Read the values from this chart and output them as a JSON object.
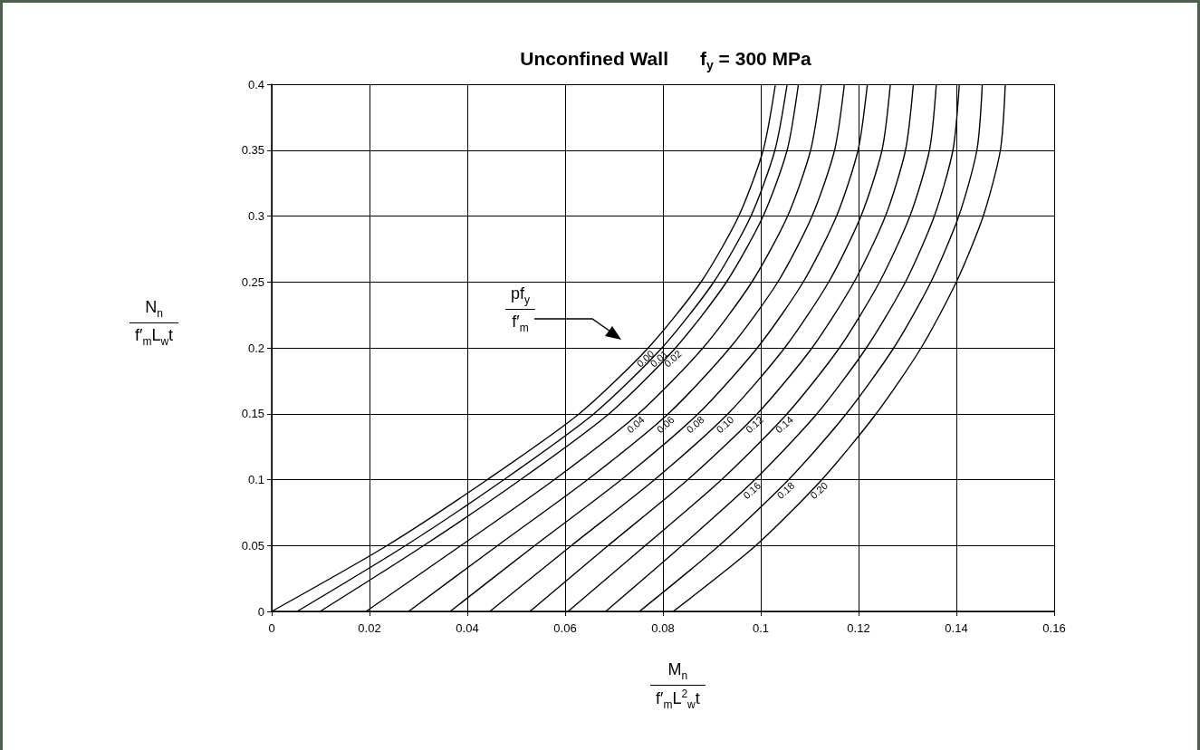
{
  "chart_data": {
    "type": "line",
    "title": "Unconfined Wall      f$_{y}$ = 300 MPa",
    "xlabel": "M$_{n}$\nf′$_{m}$L$^{2}$$_{w}$t",
    "ylabel": "N$_{n}$\nf′$_{m}$L$_{w}$t",
    "annotations": [
      "pf$_{y}$\nf′$_{m}$"
    ],
    "xlim": [
      0,
      0.16
    ],
    "xticks": [
      0,
      0.02,
      0.04,
      0.06,
      0.08,
      0.1,
      0.12,
      0.14,
      0.16
    ],
    "ylim": [
      0,
      0.4
    ],
    "yticks": [
      0,
      0.05,
      0.1,
      0.15,
      0.2,
      0.25,
      0.3,
      0.35,
      0.4
    ],
    "grid": true,
    "series": [
      {
        "name": "0.00",
        "color": "#000000",
        "x": [
          0,
          0.0236,
          0.0441,
          0.0629,
          0.077,
          0.0878,
          0.0955,
          0.1005,
          0.103
        ],
        "values": [
          0,
          0.05,
          0.1,
          0.15,
          0.2,
          0.25,
          0.3,
          0.35,
          0.4
        ]
      },
      {
        "name": "0.01",
        "color": "#000000",
        "x": [
          0.0052,
          0.0274,
          0.0475,
          0.0659,
          0.0798,
          0.0904,
          0.098,
          0.1029,
          0.1054
        ],
        "values": [
          0,
          0.05,
          0.1,
          0.15,
          0.2,
          0.25,
          0.3,
          0.35,
          0.4
        ]
      },
      {
        "name": "0.02",
        "color": "#000000",
        "x": [
          0.0099,
          0.0311,
          0.0509,
          0.069,
          0.0826,
          0.093,
          0.1005,
          0.1054,
          0.1077
        ],
        "values": [
          0,
          0.05,
          0.1,
          0.15,
          0.2,
          0.25,
          0.3,
          0.35,
          0.4
        ]
      },
      {
        "name": "0.04",
        "color": "#000000",
        "x": [
          0.0193,
          0.0387,
          0.0578,
          0.075,
          0.0882,
          0.0982,
          0.1055,
          0.1102,
          0.1124
        ],
        "values": [
          0,
          0.05,
          0.1,
          0.15,
          0.2,
          0.25,
          0.3,
          0.35,
          0.4
        ]
      },
      {
        "name": "0.06",
        "color": "#000000",
        "x": [
          0.028,
          0.0462,
          0.0646,
          0.0811,
          0.0937,
          0.1035,
          0.1105,
          0.1151,
          0.1171
        ],
        "values": [
          0,
          0.05,
          0.1,
          0.15,
          0.2,
          0.25,
          0.3,
          0.35,
          0.4
        ]
      },
      {
        "name": "0.08",
        "color": "#000000",
        "x": [
          0.0365,
          0.0538,
          0.0715,
          0.0872,
          0.0993,
          0.1087,
          0.1155,
          0.1199,
          0.1218
        ],
        "values": [
          0,
          0.05,
          0.1,
          0.15,
          0.2,
          0.25,
          0.3,
          0.35,
          0.4
        ]
      },
      {
        "name": "0.10",
        "color": "#000000",
        "x": [
          0.0446,
          0.0613,
          0.0783,
          0.0933,
          0.1049,
          0.1139,
          0.1205,
          0.1248,
          0.1265
        ],
        "values": [
          0,
          0.05,
          0.1,
          0.15,
          0.2,
          0.25,
          0.3,
          0.35,
          0.4
        ]
      },
      {
        "name": "0.12",
        "color": "#000000",
        "x": [
          0.0528,
          0.0688,
          0.0851,
          0.0993,
          0.1105,
          0.1191,
          0.1255,
          0.1296,
          0.1312
        ],
        "values": [
          0,
          0.05,
          0.1,
          0.15,
          0.2,
          0.25,
          0.3,
          0.35,
          0.4
        ]
      },
      {
        "name": "0.14",
        "color": "#000000",
        "x": [
          0.0606,
          0.0764,
          0.092,
          0.1054,
          0.1161,
          0.1243,
          0.1305,
          0.1345,
          0.1359
        ],
        "values": [
          0,
          0.05,
          0.1,
          0.15,
          0.2,
          0.25,
          0.3,
          0.35,
          0.4
        ]
      },
      {
        "name": "0.16",
        "color": "#000000",
        "x": [
          0.0683,
          0.0839,
          0.0988,
          0.1115,
          0.1216,
          0.1296,
          0.1355,
          0.1393,
          0.1406
        ],
        "values": [
          0,
          0.05,
          0.1,
          0.15,
          0.2,
          0.25,
          0.3,
          0.35,
          0.4
        ]
      },
      {
        "name": "0.18",
        "color": "#000000",
        "x": [
          0.0752,
          0.0915,
          0.1057,
          0.1175,
          0.1272,
          0.1348,
          0.1405,
          0.1442,
          0.1453
        ],
        "values": [
          0,
          0.05,
          0.1,
          0.15,
          0.2,
          0.25,
          0.3,
          0.35,
          0.4
        ]
      },
      {
        "name": "0.20",
        "color": "#000000",
        "x": [
          0.0821,
          0.099,
          0.1125,
          0.1236,
          0.1328,
          0.14,
          0.1455,
          0.149,
          0.15
        ],
        "values": [
          0,
          0.05,
          0.1,
          0.15,
          0.2,
          0.25,
          0.3,
          0.35,
          0.4
        ]
      }
    ]
  }
}
